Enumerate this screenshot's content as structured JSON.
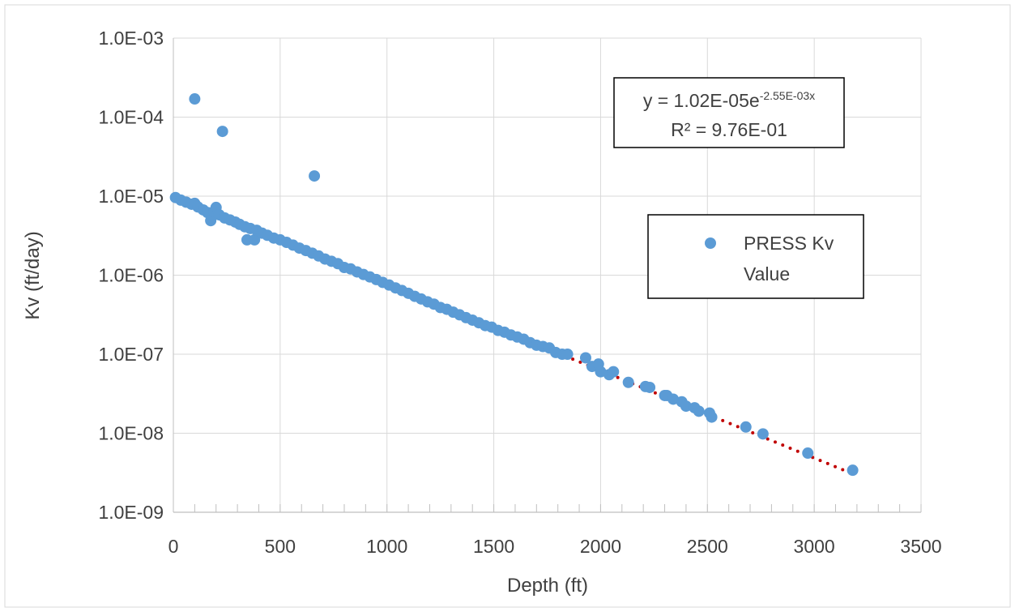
{
  "chart_data": {
    "type": "scatter",
    "title": "",
    "xlabel": "Depth (ft)",
    "ylabel": "Kv (ft/day)",
    "xlim": [
      0,
      3500
    ],
    "ylim": [
      1e-09,
      0.001
    ],
    "yscale": "log",
    "grid": true,
    "legend_position": "right",
    "x_ticks": [
      "0",
      "500",
      "1000",
      "1500",
      "2000",
      "2500",
      "3000",
      "3500"
    ],
    "y_ticks": [
      "1.0E-09",
      "1.0E-08",
      "1.0E-07",
      "1.0E-06",
      "1.0E-05",
      "1.0E-04",
      "1.0E-03"
    ],
    "series": [
      {
        "name": "PRESS Kv Value",
        "color": "#5b9bd5",
        "points": [
          [
            10,
            9.6e-06
          ],
          [
            35,
            8.9e-06
          ],
          [
            60,
            8.4e-06
          ],
          [
            85,
            7.9e-06
          ],
          [
            100,
            8.1e-06
          ],
          [
            115,
            7.3e-06
          ],
          [
            140,
            6.7e-06
          ],
          [
            160,
            6.2e-06
          ],
          [
            175,
            4.9e-06
          ],
          [
            190,
            6.4e-06
          ],
          [
            200,
            7.2e-06
          ],
          [
            215,
            5.8e-06
          ],
          [
            240,
            5.3e-06
          ],
          [
            265,
            5e-06
          ],
          [
            290,
            4.7e-06
          ],
          [
            310,
            4.4e-06
          ],
          [
            335,
            4.1e-06
          ],
          [
            345,
            2.8e-06
          ],
          [
            360,
            3.9e-06
          ],
          [
            380,
            2.8e-06
          ],
          [
            390,
            3.7e-06
          ],
          [
            415,
            3.4e-06
          ],
          [
            440,
            3.2e-06
          ],
          [
            470,
            2.95e-06
          ],
          [
            500,
            2.8e-06
          ],
          [
            530,
            2.6e-06
          ],
          [
            560,
            2.4e-06
          ],
          [
            590,
            2.2e-06
          ],
          [
            620,
            2.05e-06
          ],
          [
            650,
            1.9e-06
          ],
          [
            680,
            1.75e-06
          ],
          [
            710,
            1.6e-06
          ],
          [
            740,
            1.5e-06
          ],
          [
            770,
            1.4e-06
          ],
          [
            800,
            1.25e-06
          ],
          [
            830,
            1.2e-06
          ],
          [
            860,
            1.1e-06
          ],
          [
            890,
            1.02e-06
          ],
          [
            920,
            9.5e-07
          ],
          [
            950,
            8.8e-07
          ],
          [
            980,
            8.1e-07
          ],
          [
            1010,
            7.5e-07
          ],
          [
            1040,
            6.9e-07
          ],
          [
            1070,
            6.4e-07
          ],
          [
            1100,
            5.9e-07
          ],
          [
            1130,
            5.4e-07
          ],
          [
            1160,
            5e-07
          ],
          [
            1190,
            4.6e-07
          ],
          [
            1220,
            4.3e-07
          ],
          [
            1250,
            3.9e-07
          ],
          [
            1280,
            3.7e-07
          ],
          [
            1310,
            3.4e-07
          ],
          [
            1340,
            3.15e-07
          ],
          [
            1370,
            2.9e-07
          ],
          [
            1400,
            2.7e-07
          ],
          [
            1430,
            2.5e-07
          ],
          [
            1460,
            2.3e-07
          ],
          [
            1490,
            2.2e-07
          ],
          [
            1520,
            2e-07
          ],
          [
            1550,
            1.9e-07
          ],
          [
            1580,
            1.75e-07
          ],
          [
            1610,
            1.65e-07
          ],
          [
            1640,
            1.55e-07
          ],
          [
            1670,
            1.4e-07
          ],
          [
            1700,
            1.3e-07
          ],
          [
            1730,
            1.25e-07
          ],
          [
            1760,
            1.2e-07
          ],
          [
            1790,
            1.05e-07
          ],
          [
            1820,
            1e-07
          ],
          [
            1845,
            1e-07
          ],
          [
            1930,
            9e-08
          ],
          [
            1960,
            7e-08
          ],
          [
            1990,
            7.5e-08
          ],
          [
            2000,
            6e-08
          ],
          [
            2040,
            5.5e-08
          ],
          [
            2060,
            6e-08
          ],
          [
            2130,
            4.4e-08
          ],
          [
            2210,
            3.9e-08
          ],
          [
            2230,
            3.8e-08
          ],
          [
            2300,
            3e-08
          ],
          [
            2310,
            3e-08
          ],
          [
            2340,
            2.7e-08
          ],
          [
            2380,
            2.5e-08
          ],
          [
            2400,
            2.2e-08
          ],
          [
            2440,
            2.1e-08
          ],
          [
            2460,
            1.9e-08
          ],
          [
            2510,
            1.8e-08
          ],
          [
            2520,
            1.6e-08
          ],
          [
            2680,
            1.2e-08
          ],
          [
            2760,
            9.8e-09
          ],
          [
            2970,
            5.6e-09
          ],
          [
            3180,
            3.4e-09
          ],
          [
            100,
            0.00017
          ],
          [
            230,
            6.6e-05
          ],
          [
            660,
            1.8e-05
          ]
        ]
      }
    ],
    "trendline": {
      "type": "exponential",
      "a": 1.02e-05,
      "b": -0.00255,
      "x_range": [
        10,
        3180
      ],
      "color": "#c00000",
      "style": "dotted"
    },
    "annotations": {
      "equation_prefix": "y = 1.02E-05e",
      "equation_exponent": "-2.55E-03x",
      "r_squared": "R² = 9.76E-01"
    },
    "legend": {
      "entries": [
        "PRESS Kv",
        "Value"
      ]
    }
  }
}
